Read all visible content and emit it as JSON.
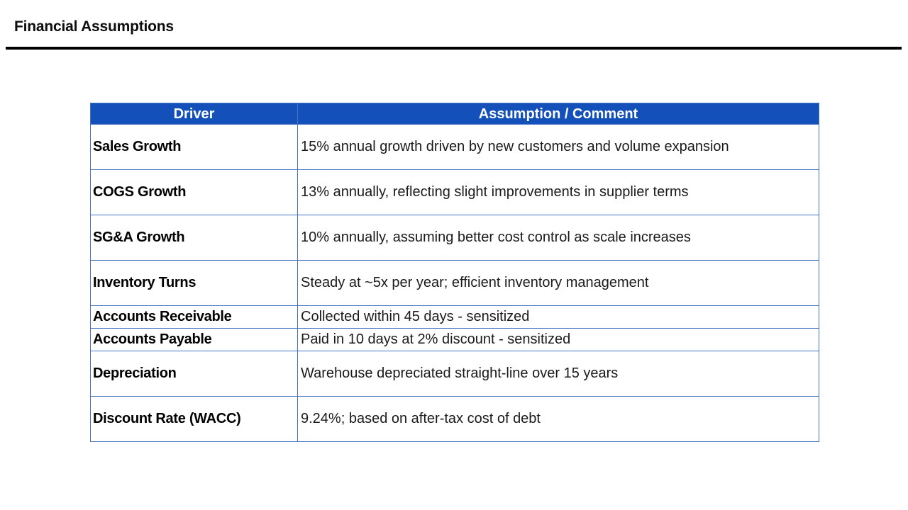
{
  "title": "Financial Assumptions",
  "table": {
    "columns": {
      "driver": "Driver",
      "comment": "Assumption / Comment"
    },
    "rows": [
      {
        "driver": "Sales Growth",
        "comment": "15% annual growth driven by new customers and volume expansion"
      },
      {
        "driver": "COGS Growth",
        "comment": "13% annually, reflecting slight improvements in supplier terms"
      },
      {
        "driver": "SG&A Growth",
        "comment": "10% annually, assuming better cost control as scale increases"
      },
      {
        "driver": "Inventory Turns",
        "comment": "Steady at ~5x per year; efficient inventory management"
      },
      {
        "driver": "Accounts Receivable",
        "comment": "Collected within 45 days - sensitized"
      },
      {
        "driver": "Accounts Payable",
        "comment": "Paid in 10 days at 2% discount - sensitized"
      },
      {
        "driver": "Depreciation",
        "comment": "Warehouse depreciated straight-line over 15 years"
      },
      {
        "driver": "Discount Rate (WACC)",
        "comment": "9.24%; based on after-tax cost of debt"
      }
    ]
  },
  "colors": {
    "header_bg": "#1450B9",
    "header_text": "#FFFFFF",
    "table_border": "#4472C4",
    "title_rule": "#000000",
    "body_text": "#1A1A1A"
  }
}
